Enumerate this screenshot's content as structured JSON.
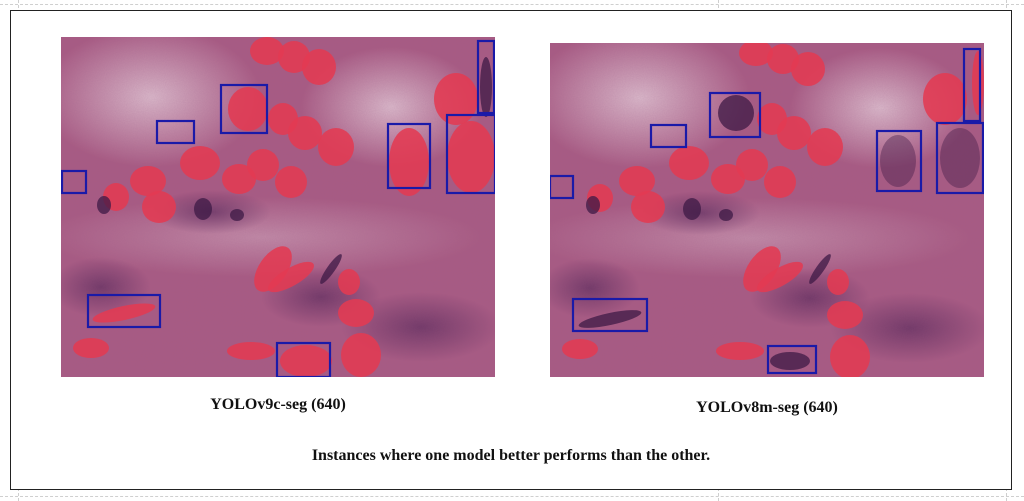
{
  "figure": {
    "caption": "Instances where one model better performs than the other."
  },
  "panels": [
    {
      "id": "left",
      "label": "YOLOv9c-seg (640)",
      "detection_box_count": 8
    },
    {
      "id": "right",
      "label": "YOLOv8m-seg (640)",
      "detection_box_count": 8
    }
  ],
  "colors": {
    "tissue_base": "#a85b83",
    "mask_fill": "#e23a52",
    "box_stroke": "#1a1aa8",
    "nuclei": "#4a2250"
  }
}
